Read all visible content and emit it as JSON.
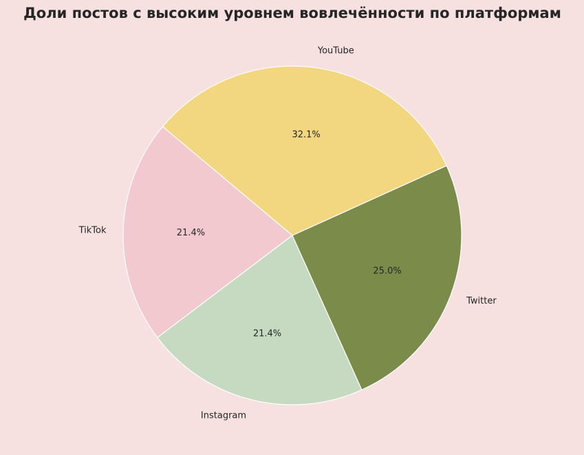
{
  "chart_data": {
    "type": "pie",
    "title": "Доли постов с высоким уровнем вовлечённости по платформам",
    "categories": [
      "TikTok",
      "Instagram",
      "Twitter",
      "YouTube"
    ],
    "values": [
      21.4,
      21.4,
      25.0,
      32.1
    ],
    "value_labels": [
      "21.4%",
      "21.4%",
      "25.0%",
      "32.1%"
    ],
    "colors": [
      "#f2c9cf",
      "#c5dac0",
      "#7a8b4a",
      "#f2d680"
    ],
    "startangle": 140
  }
}
